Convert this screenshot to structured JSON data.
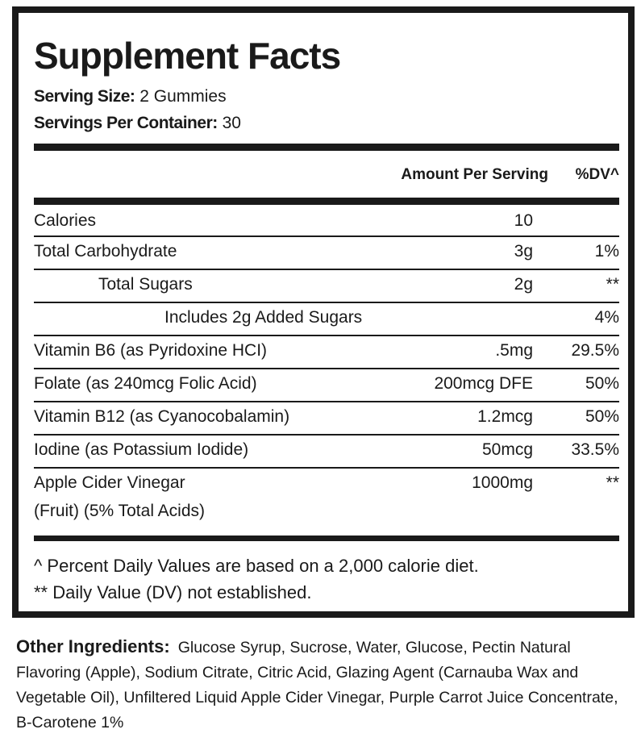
{
  "title": "Supplement Facts",
  "serving_size": {
    "label": "Serving Size:",
    "value": "2 Gummies"
  },
  "servings_per_container": {
    "label": "Servings Per Container:",
    "value": "30"
  },
  "header": {
    "amount": "Amount Per Serving",
    "dv": "%DV^"
  },
  "rows": [
    {
      "name": "Calories",
      "amount": "10",
      "dv": ""
    },
    {
      "name": "Total Carbohydrate",
      "amount": "3g",
      "dv": "1%"
    },
    {
      "name": "Total Sugars",
      "amount": "2g",
      "dv": "**"
    },
    {
      "name": "Includes 2g Added Sugars",
      "amount": "",
      "dv": "4%"
    },
    {
      "name": "Vitamin B6 (as Pyridoxine HCI)",
      "amount": ".5mg",
      "dv": "29.5%"
    },
    {
      "name": "Folate (as 240mcg Folic Acid)",
      "amount": "200mcg DFE",
      "dv": "50%"
    },
    {
      "name": "Vitamin B12 (as Cyanocobalamin)",
      "amount": "1.2mcg",
      "dv": "50%"
    },
    {
      "name": "Iodine (as Potassium Iodide)",
      "amount": "50mcg",
      "dv": "33.5%"
    },
    {
      "name": "Apple Cider Vinegar",
      "name2": "(Fruit) (5% Total Acids)",
      "amount": "1000mg",
      "dv": "**"
    }
  ],
  "footnotes": [
    "^ Percent Daily Values are based on a 2,000 calorie diet.",
    "** Daily Value (DV) not established."
  ],
  "other_ingredients": {
    "label": "Other Ingredients:",
    "text": "Glucose Syrup, Sucrose, Water, Glucose, Pectin Natural Flavoring (Apple), Sodium Citrate, Citric Acid, Glazing Agent (Carnauba Wax and Vegetable Oil), Unfiltered Liquid Apple Cider Vinegar, Purple Carrot Juice Concentrate, B-Carotene 1%"
  }
}
